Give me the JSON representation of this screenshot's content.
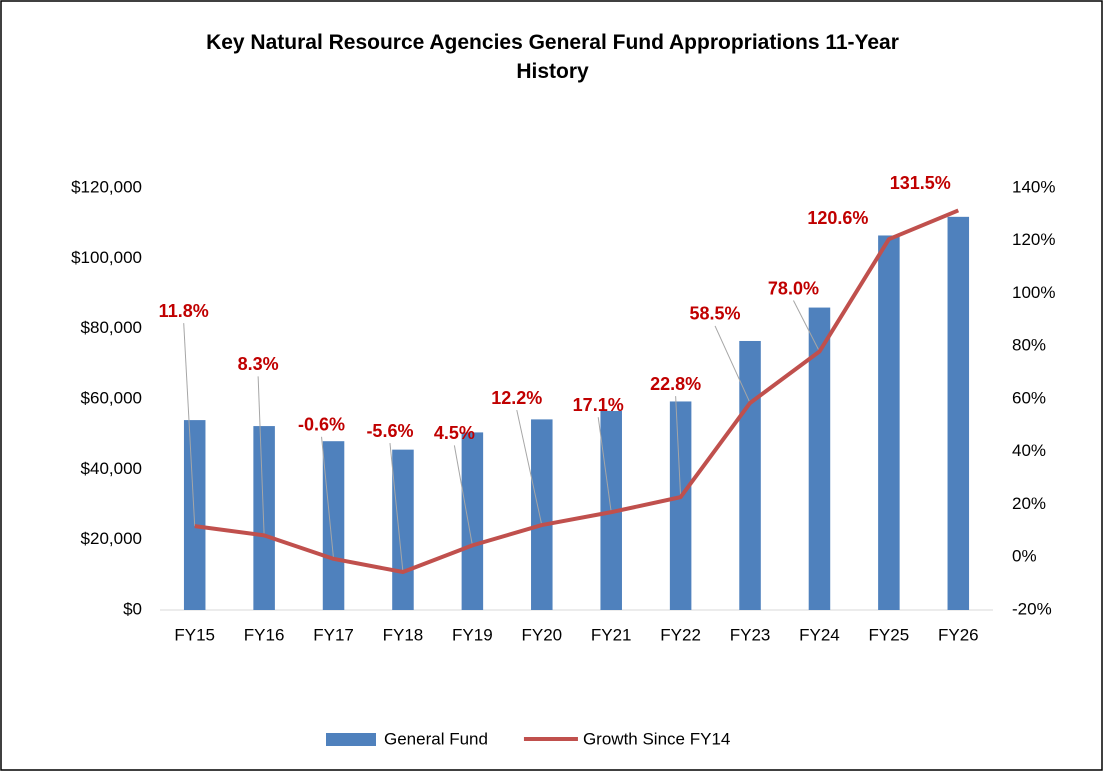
{
  "chart_data": {
    "type": "bar-line",
    "title": "Key Natural Resource Agencies General Fund Appropriations 11-Year History",
    "categories": [
      "FY15",
      "FY16",
      "FY17",
      "FY18",
      "FY19",
      "FY20",
      "FY21",
      "FY22",
      "FY23",
      "FY24",
      "FY25",
      "FY26"
    ],
    "series": [
      {
        "name": "General Fund",
        "type": "bar",
        "color": "#4f81bd",
        "axis": "y",
        "values": [
          54000,
          52300,
          48000,
          45600,
          50500,
          54200,
          56600,
          59300,
          76500,
          86000,
          106500,
          111800
        ]
      },
      {
        "name": "Growth Since FY14",
        "type": "line",
        "color": "#c0504d",
        "axis": "y2",
        "values": [
          11.8,
          8.3,
          -0.6,
          -5.6,
          4.5,
          12.2,
          17.1,
          22.8,
          58.5,
          78.0,
          120.6,
          131.5
        ],
        "value_labels": [
          "11.8%",
          "8.3%",
          "-0.6%",
          "-5.6%",
          "4.5%",
          "12.2%",
          "17.1%",
          "22.8%",
          "58.5%",
          "78.0%",
          "120.6%",
          "131.5%"
        ],
        "label_color": "#c00000"
      }
    ],
    "ylim": [
      0,
      120000
    ],
    "yticks": [
      {
        "value": 0,
        "label": "$0"
      },
      {
        "value": 20000,
        "label": "$20,000"
      },
      {
        "value": 40000,
        "label": "$40,000"
      },
      {
        "value": 60000,
        "label": "$60,000"
      },
      {
        "value": 80000,
        "label": "$80,000"
      },
      {
        "value": 100000,
        "label": "$100,000"
      },
      {
        "value": 120000,
        "label": "$120,000"
      }
    ],
    "y2lim": [
      -20,
      140
    ],
    "y2ticks": [
      {
        "value": -20,
        "label": "-20%"
      },
      {
        "value": 0,
        "label": "0%"
      },
      {
        "value": 20,
        "label": "20%"
      },
      {
        "value": 40,
        "label": "40%"
      },
      {
        "value": 60,
        "label": "60%"
      },
      {
        "value": 80,
        "label": "80%"
      },
      {
        "value": 100,
        "label": "100%"
      },
      {
        "value": 120,
        "label": "120%"
      },
      {
        "value": 140,
        "label": "140%"
      }
    ],
    "grid": false,
    "legend": "bottom"
  }
}
